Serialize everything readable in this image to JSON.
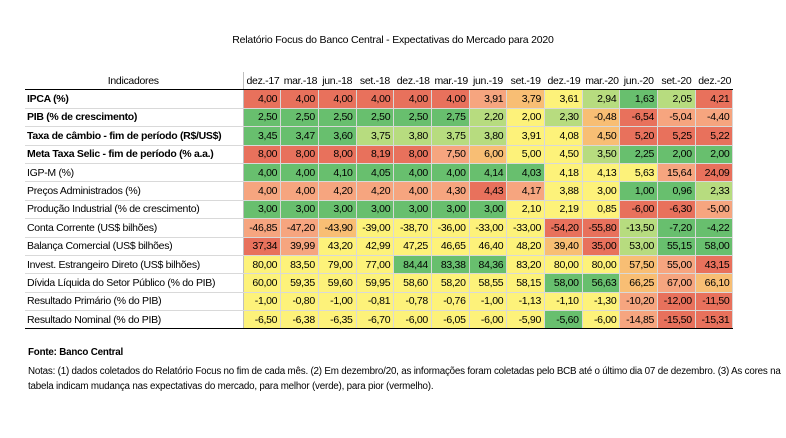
{
  "title": "Relatório Focus do Banco Central - Expectativas do Mercado para 2020",
  "columns_label": "Indicadores",
  "columns": [
    "dez.-17",
    "mar.-18",
    "jun.-18",
    "set.-18",
    "dez.-18",
    "mar.-19",
    "jun.-19",
    "set.-19",
    "dez.-19",
    "mar.-20",
    "jun.-20",
    "set.-20",
    "dez.-20"
  ],
  "rows": [
    {
      "label": "IPCA (%)",
      "bold": true,
      "values": [
        "4,00",
        "4,00",
        "4,00",
        "4,00",
        "4,00",
        "4,00",
        "3,91",
        "3,79",
        "3,61",
        "2,94",
        "1,63",
        "2,05",
        "4,21"
      ],
      "colors": [
        "red",
        "red",
        "red",
        "red",
        "red",
        "red",
        "ltred",
        "orange",
        "yellow",
        "ltgreen",
        "green",
        "ltgreen",
        "red"
      ]
    },
    {
      "label": "PIB (% de crescimento)",
      "bold": true,
      "values": [
        "2,50",
        "2,50",
        "2,50",
        "2,50",
        "2,50",
        "2,75",
        "2,20",
        "2,00",
        "2,30",
        "-0,48",
        "-6,54",
        "-5,04",
        "-4,40"
      ],
      "colors": [
        "green",
        "green",
        "green",
        "green",
        "green",
        "green",
        "ltgreen",
        "yellow",
        "ltgreen",
        "orange",
        "red",
        "ltred",
        "ltred"
      ]
    },
    {
      "label": "Taxa de câmbio - fim de período (R$/US$)",
      "bold": true,
      "values": [
        "3,45",
        "3,47",
        "3,60",
        "3,75",
        "3,80",
        "3,75",
        "3,80",
        "3,91",
        "4,08",
        "4,50",
        "5,20",
        "5,25",
        "5,22"
      ],
      "colors": [
        "green",
        "green",
        "green",
        "ltgreen",
        "ltgreen",
        "ltgreen",
        "ltgreen",
        "yellow",
        "yellow",
        "orange",
        "red",
        "red",
        "red"
      ]
    },
    {
      "label": "Meta Taxa Selic - fim de período (% a.a.)",
      "bold": true,
      "values": [
        "8,00",
        "8,00",
        "8,00",
        "8,19",
        "8,00",
        "7,50",
        "6,00",
        "5,00",
        "4,50",
        "3,50",
        "2,25",
        "2,00",
        "2,00"
      ],
      "colors": [
        "red",
        "red",
        "red",
        "red",
        "red",
        "ltred",
        "orange",
        "yellow",
        "yellow",
        "ltgreen",
        "green",
        "green",
        "green"
      ]
    },
    {
      "label": "IGP-M (%)",
      "bold": false,
      "sep": true,
      "values": [
        "4,00",
        "4,00",
        "4,10",
        "4,05",
        "4,00",
        "4,00",
        "4,14",
        "4,03",
        "4,18",
        "4,13",
        "5,63",
        "15,64",
        "24,09"
      ],
      "colors": [
        "green",
        "green",
        "green",
        "green",
        "green",
        "green",
        "green",
        "green",
        "yellow",
        "yellow",
        "yellow",
        "ltred",
        "red"
      ]
    },
    {
      "label": "Preços Administrados (%)",
      "bold": false,
      "values": [
        "4,00",
        "4,00",
        "4,20",
        "4,20",
        "4,00",
        "4,30",
        "4,43",
        "4,17",
        "3,88",
        "3,00",
        "1,00",
        "0,96",
        "2,33"
      ],
      "colors": [
        "ltred",
        "ltred",
        "ltred",
        "ltred",
        "ltred",
        "ltred",
        "red",
        "ltred",
        "yellow",
        "yellow",
        "green",
        "green",
        "ltgreen"
      ]
    },
    {
      "label": "Produção Industrial (% de crescimento)",
      "bold": false,
      "values": [
        "3,00",
        "3,00",
        "3,00",
        "3,00",
        "3,00",
        "3,00",
        "3,00",
        "2,10",
        "2,19",
        "0,85",
        "-6,00",
        "-6,30",
        "-5,00"
      ],
      "colors": [
        "green",
        "green",
        "green",
        "green",
        "green",
        "green",
        "green",
        "yellow",
        "yellow",
        "yellow",
        "red",
        "red",
        "ltred"
      ]
    },
    {
      "label": "Conta Corrente (US$ bilhões)",
      "bold": false,
      "sep": true,
      "values": [
        "-46,85",
        "-47,20",
        "-43,90",
        "-39,00",
        "-38,70",
        "-36,00",
        "-33,00",
        "-33,00",
        "-54,20",
        "-55,80",
        "-13,50",
        "-7,20",
        "-4,22"
      ],
      "colors": [
        "ltred",
        "ltred",
        "orange",
        "yellow",
        "yellow",
        "yellow",
        "yellow",
        "yellow",
        "red",
        "red",
        "ltgreen",
        "green",
        "green"
      ]
    },
    {
      "label": "Balança Comercial (US$ bilhões)",
      "bold": false,
      "values": [
        "37,34",
        "39,99",
        "43,20",
        "42,99",
        "47,25",
        "46,65",
        "46,40",
        "48,20",
        "39,40",
        "35,00",
        "53,00",
        "55,15",
        "58,00"
      ],
      "colors": [
        "red",
        "ltred",
        "yellow",
        "yellow",
        "yellow",
        "yellow",
        "yellow",
        "yellow",
        "orange",
        "red",
        "ltgreen",
        "green",
        "green"
      ]
    },
    {
      "label": "Invest. Estrangeiro Direto (US$ bilhões)",
      "bold": false,
      "values": [
        "80,00",
        "83,50",
        "79,00",
        "77,00",
        "84,44",
        "83,38",
        "84,36",
        "83,20",
        "80,00",
        "80,00",
        "57,50",
        "55,00",
        "43,15"
      ],
      "colors": [
        "yellow",
        "yellow",
        "yellow",
        "yellow",
        "green",
        "green",
        "green",
        "yellow",
        "yellow",
        "yellow",
        "orange",
        "ltred",
        "red"
      ]
    },
    {
      "label": "Dívida Líquida do Setor Público (% do PIB)",
      "bold": false,
      "sep": true,
      "values": [
        "60,00",
        "59,35",
        "59,60",
        "59,95",
        "58,60",
        "58,20",
        "58,55",
        "58,15",
        "58,00",
        "56,63",
        "66,25",
        "67,00",
        "66,10"
      ],
      "colors": [
        "yellow",
        "yellow",
        "yellow",
        "yellow",
        "yellow",
        "yellow",
        "yellow",
        "yellow",
        "green",
        "green",
        "orange",
        "ltred",
        "orange"
      ]
    },
    {
      "label": "Resultado Primário (% do PIB)",
      "bold": false,
      "values": [
        "-1,00",
        "-0,80",
        "-1,00",
        "-0,81",
        "-0,78",
        "-0,76",
        "-1,00",
        "-1,13",
        "-1,10",
        "-1,30",
        "-10,20",
        "-12,00",
        "-11,50"
      ],
      "colors": [
        "yellow",
        "yellow",
        "yellow",
        "yellow",
        "yellow",
        "yellow",
        "yellow",
        "yellow",
        "yellow",
        "yellow",
        "ltred",
        "red",
        "red"
      ]
    },
    {
      "label": "Resultado Nominal (% do PIB)",
      "bold": false,
      "last": true,
      "values": [
        "-6,50",
        "-6,38",
        "-6,35",
        "-6,70",
        "-6,00",
        "-6,05",
        "-6,00",
        "-5,90",
        "-5,60",
        "-6,00",
        "-14,85",
        "-15,50",
        "-15,31"
      ],
      "colors": [
        "yellow",
        "yellow",
        "yellow",
        "yellow",
        "yellow",
        "yellow",
        "yellow",
        "yellow",
        "green",
        "yellow",
        "ltred",
        "red",
        "red"
      ]
    }
  ],
  "color_palette": {
    "red": "#e8715c",
    "ltred": "#f6a57f",
    "orange": "#f8be74",
    "yellow": "#fdf27a",
    "ltgreen": "#b7dc7f",
    "green": "#68bf6e"
  },
  "source": "Fonte: Banco Central",
  "notes_line1": "Notas: (1) dados coletados do Relatório Focus no fim de cada mês. (2) Em dezembro/20, as informações foram coletadas pelo BCB até o último dia 07 de dezembro. (3) As cores na",
  "notes_line2": "tabela indicam mudança nas expectativas do mercado, para melhor (verde), para pior (vermelho)."
}
